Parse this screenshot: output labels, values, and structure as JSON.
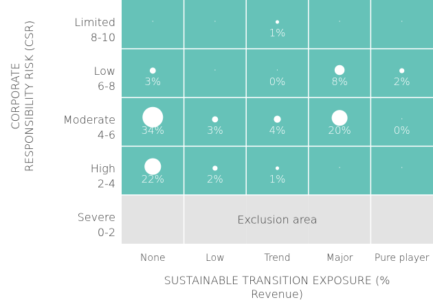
{
  "chart_data": {
    "type": "bubble-matrix",
    "xlabel": "SUSTAINABLE TRANSITION EXPOSURE (% Revenue)",
    "xlabel_lines": [
      "SUSTAINABLE TRANSITION EXPOSURE (%",
      "Revenue)"
    ],
    "ylabel": "CORPORATE RESPONSIBILITY RISK (CSR)",
    "ylabel_lines": [
      "CORPORATE",
      "RESPONSIBILITY RISK (CSR)"
    ],
    "columns": [
      "None",
      "Low",
      "Trend",
      "Major",
      "Pure player"
    ],
    "rows": [
      {
        "name": "Limited",
        "range": "8-10"
      },
      {
        "name": "Low",
        "range": "6-8"
      },
      {
        "name": "Moderate",
        "range": "4-6"
      },
      {
        "name": "High",
        "range": "2-4"
      },
      {
        "name": "Severe",
        "range": "0-2"
      }
    ],
    "values": [
      [
        null,
        null,
        1,
        null,
        null
      ],
      [
        3,
        null,
        0,
        8,
        2
      ],
      [
        34,
        3,
        4,
        20,
        0
      ],
      [
        22,
        2,
        1,
        null,
        null
      ],
      [
        null,
        null,
        null,
        null,
        null
      ]
    ],
    "value_suffix": "%",
    "exclusion": {
      "label": "Exclusion area",
      "row": 4,
      "col_start": 1,
      "col_end": 3
    },
    "colors": {
      "cell": "#66c2b8",
      "excluded": "#e3e3e3",
      "bubble": "#ffffff"
    }
  }
}
